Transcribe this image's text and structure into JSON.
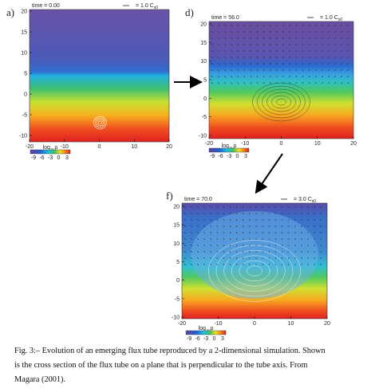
{
  "panels": [
    {
      "label": "a)",
      "time": "time = 0.00",
      "scale": "= 1.0 C",
      "scale_sub": "s0",
      "y_ticks": [
        "20",
        "15",
        "10",
        "5",
        "0",
        "-5",
        "-10"
      ],
      "x_ticks": [
        "-20",
        "-10",
        "0",
        "10",
        "20"
      ],
      "colorbar_label": "log",
      "colorbar_sub": "10",
      "colorbar_var": "ρ",
      "colorbar_ticks": [
        "-9",
        "-6",
        "-3",
        "0",
        "3"
      ]
    },
    {
      "label": "d)",
      "time": "time = 56.0",
      "scale": "= 1.0 C",
      "scale_sub": "s0",
      "y_ticks": [
        "20",
        "15",
        "10",
        "5",
        "0",
        "-5",
        "-10"
      ],
      "x_ticks": [
        "-20",
        "-10",
        "0",
        "10",
        "20"
      ],
      "colorbar_label": "log",
      "colorbar_sub": "10",
      "colorbar_var": "ρ",
      "colorbar_ticks": [
        "-9",
        "-6",
        "-3",
        "0",
        "3"
      ]
    },
    {
      "label": "f)",
      "time": "time = 70.0",
      "scale": "= 3.0 C",
      "scale_sub": "s0",
      "y_ticks": [
        "20",
        "15",
        "10",
        "5",
        "0",
        "-5",
        "-10"
      ],
      "x_ticks": [
        "-20",
        "-10",
        "0",
        "10",
        "20"
      ],
      "colorbar_label": "log",
      "colorbar_sub": "10",
      "colorbar_var": "ρ",
      "colorbar_ticks": [
        "-9",
        "-6",
        "-3",
        "0",
        "3"
      ]
    }
  ],
  "caption": [
    "Fig. 3:– Evolution of an emerging flux tube reproduced by a 2-dimensional simulation. Shown",
    "is the cross section of the flux tube on a plane that is perpendicular to the tube axis. From",
    "Magara (2001)."
  ]
}
